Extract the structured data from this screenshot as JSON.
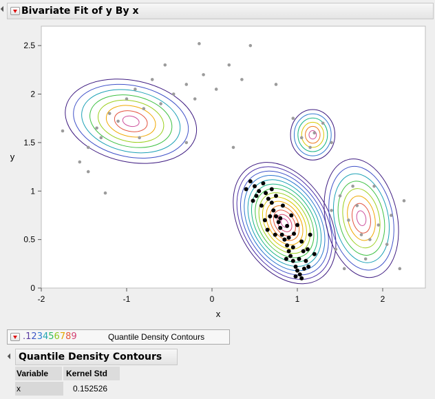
{
  "report": {
    "title": "Bivariate Fit of y By x"
  },
  "legend": {
    "digits": [
      ".1",
      "2",
      "3",
      "4",
      "5",
      "6",
      "7",
      "8",
      "9"
    ],
    "label": "Quantile Density Contours"
  },
  "section": {
    "title": "Quantile Density Contours",
    "table": {
      "headers": [
        "Variable",
        "Kernel Std"
      ],
      "rows": [
        {
          "variable": "x",
          "kernel_std": "0.152526"
        }
      ]
    }
  },
  "colors": {
    "contours": [
      "#3d1a80",
      "#4b2fa8",
      "#3f51c8",
      "#2d78d0",
      "#1aa0b5",
      "#18b585",
      "#3cc041",
      "#9bcf1c",
      "#d9c800",
      "#f0a800",
      "#ee7a1c",
      "#e35540",
      "#d8446e",
      "#cc4d9a"
    ],
    "points_gray": "#9b9b9b",
    "points_black": "#000000"
  },
  "chart_data": {
    "type": "scatter",
    "title": "",
    "xlabel": "x",
    "ylabel": "y",
    "xlim": [
      -2,
      2.5
    ],
    "ylim": [
      0,
      2.7
    ],
    "xticks": [
      "-2",
      "-1",
      "0",
      "1",
      "2"
    ],
    "yticks": [
      "0",
      "0.5",
      "1",
      "1.5",
      "2",
      "2.5"
    ],
    "grid": false,
    "density_clusters": [
      {
        "cx": -0.95,
        "cy": 1.72,
        "rx": 0.78,
        "ry": 0.42,
        "rot": -12,
        "levels": 8
      },
      {
        "cx": 0.85,
        "cy": 0.67,
        "rx": 0.52,
        "ry": 0.68,
        "rot": 32,
        "levels": 14
      },
      {
        "cx": 1.18,
        "cy": 1.58,
        "rx": 0.26,
        "ry": 0.26,
        "rot": 0,
        "levels": 6
      },
      {
        "cx": 1.75,
        "cy": 0.72,
        "rx": 0.42,
        "ry": 0.62,
        "rot": 12,
        "levels": 8
      }
    ],
    "points": [
      {
        "x": 0.45,
        "y": 1.1,
        "g": "b"
      },
      {
        "x": 0.5,
        "y": 1.05,
        "g": "b"
      },
      {
        "x": 0.55,
        "y": 1.0,
        "g": "b"
      },
      {
        "x": 0.6,
        "y": 1.08,
        "g": "b"
      },
      {
        "x": 0.63,
        "y": 0.98,
        "g": "b"
      },
      {
        "x": 0.66,
        "y": 0.92,
        "g": "b"
      },
      {
        "x": 0.7,
        "y": 0.88,
        "g": "b"
      },
      {
        "x": 0.72,
        "y": 0.8,
        "g": "b"
      },
      {
        "x": 0.75,
        "y": 0.74,
        "g": "b"
      },
      {
        "x": 0.78,
        "y": 0.68,
        "g": "b"
      },
      {
        "x": 0.8,
        "y": 0.62,
        "g": "b"
      },
      {
        "x": 0.82,
        "y": 0.55,
        "g": "b"
      },
      {
        "x": 0.85,
        "y": 0.5,
        "g": "b"
      },
      {
        "x": 0.88,
        "y": 0.44,
        "g": "b"
      },
      {
        "x": 0.9,
        "y": 0.38,
        "g": "b"
      },
      {
        "x": 0.92,
        "y": 0.33,
        "g": "b"
      },
      {
        "x": 0.95,
        "y": 0.28,
        "g": "b"
      },
      {
        "x": 0.98,
        "y": 0.22,
        "g": "b"
      },
      {
        "x": 1.0,
        "y": 0.18,
        "g": "b"
      },
      {
        "x": 1.03,
        "y": 0.14,
        "g": "b"
      },
      {
        "x": 1.05,
        "y": 0.1,
        "g": "b"
      },
      {
        "x": 1.08,
        "y": 0.2,
        "g": "b"
      },
      {
        "x": 1.1,
        "y": 0.28,
        "g": "b"
      },
      {
        "x": 1.12,
        "y": 0.4,
        "g": "b"
      },
      {
        "x": 1.05,
        "y": 0.48,
        "g": "b"
      },
      {
        "x": 0.96,
        "y": 0.56,
        "g": "b"
      },
      {
        "x": 0.88,
        "y": 0.64,
        "g": "b"
      },
      {
        "x": 0.68,
        "y": 0.74,
        "g": "b"
      },
      {
        "x": 0.58,
        "y": 0.85,
        "g": "b"
      },
      {
        "x": 0.52,
        "y": 0.95,
        "g": "b"
      },
      {
        "x": 0.62,
        "y": 0.7,
        "g": "b"
      },
      {
        "x": 0.75,
        "y": 0.95,
        "g": "b"
      },
      {
        "x": 0.83,
        "y": 0.85,
        "g": "b"
      },
      {
        "x": 0.93,
        "y": 0.75,
        "g": "b"
      },
      {
        "x": 1.0,
        "y": 0.65,
        "g": "b"
      },
      {
        "x": 1.15,
        "y": 0.55,
        "g": "b"
      },
      {
        "x": 1.2,
        "y": 0.35,
        "g": "b"
      },
      {
        "x": 0.95,
        "y": 0.42,
        "g": "b"
      },
      {
        "x": 1.02,
        "y": 0.3,
        "g": "b"
      },
      {
        "x": 0.87,
        "y": 0.3,
        "g": "b"
      },
      {
        "x": 0.4,
        "y": 1.02,
        "g": "b"
      },
      {
        "x": 0.48,
        "y": 0.9,
        "g": "b"
      },
      {
        "x": 0.7,
        "y": 1.02,
        "g": "b"
      },
      {
        "x": 0.8,
        "y": 0.72,
        "g": "b"
      },
      {
        "x": 0.9,
        "y": 0.52,
        "g": "b"
      },
      {
        "x": 1.07,
        "y": 0.38,
        "g": "b"
      },
      {
        "x": 0.98,
        "y": 0.12,
        "g": "b"
      },
      {
        "x": 1.13,
        "y": 0.22,
        "g": "b"
      },
      {
        "x": 0.65,
        "y": 0.6,
        "g": "b"
      },
      {
        "x": 0.74,
        "y": 0.55,
        "g": "b"
      },
      {
        "x": -1.75,
        "y": 1.62,
        "g": "g"
      },
      {
        "x": -1.55,
        "y": 1.3,
        "g": "g"
      },
      {
        "x": -1.45,
        "y": 1.45,
        "g": "g"
      },
      {
        "x": -1.35,
        "y": 1.65,
        "g": "g"
      },
      {
        "x": -1.2,
        "y": 1.8,
        "g": "g"
      },
      {
        "x": -1.1,
        "y": 1.72,
        "g": "g"
      },
      {
        "x": -1.0,
        "y": 1.95,
        "g": "g"
      },
      {
        "x": -0.9,
        "y": 2.05,
        "g": "g"
      },
      {
        "x": -0.8,
        "y": 1.85,
        "g": "g"
      },
      {
        "x": -0.7,
        "y": 2.15,
        "g": "g"
      },
      {
        "x": -0.6,
        "y": 1.9,
        "g": "g"
      },
      {
        "x": -0.45,
        "y": 2.0,
        "g": "g"
      },
      {
        "x": -0.3,
        "y": 2.1,
        "g": "g"
      },
      {
        "x": -0.2,
        "y": 1.95,
        "g": "g"
      },
      {
        "x": -0.1,
        "y": 2.2,
        "g": "g"
      },
      {
        "x": 0.05,
        "y": 2.05,
        "g": "g"
      },
      {
        "x": 0.2,
        "y": 2.3,
        "g": "g"
      },
      {
        "x": 0.35,
        "y": 2.15,
        "g": "g"
      },
      {
        "x": -0.55,
        "y": 2.3,
        "g": "g"
      },
      {
        "x": -0.15,
        "y": 2.52,
        "g": "g"
      },
      {
        "x": 0.45,
        "y": 2.5,
        "g": "g"
      },
      {
        "x": -1.45,
        "y": 1.2,
        "g": "g"
      },
      {
        "x": -1.25,
        "y": 0.98,
        "g": "g"
      },
      {
        "x": -1.3,
        "y": 1.55,
        "g": "g"
      },
      {
        "x": -0.85,
        "y": 1.55,
        "g": "g"
      },
      {
        "x": -0.3,
        "y": 1.5,
        "g": "g"
      },
      {
        "x": 0.25,
        "y": 1.45,
        "g": "g"
      },
      {
        "x": 1.05,
        "y": 1.55,
        "g": "g"
      },
      {
        "x": 1.2,
        "y": 1.6,
        "g": "g"
      },
      {
        "x": 1.15,
        "y": 1.45,
        "g": "g"
      },
      {
        "x": 1.3,
        "y": 1.7,
        "g": "g"
      },
      {
        "x": 1.4,
        "y": 1.5,
        "g": "g"
      },
      {
        "x": 1.5,
        "y": 0.95,
        "g": "g"
      },
      {
        "x": 1.65,
        "y": 1.05,
        "g": "g"
      },
      {
        "x": 1.7,
        "y": 0.85,
        "g": "g"
      },
      {
        "x": 1.6,
        "y": 0.7,
        "g": "g"
      },
      {
        "x": 1.75,
        "y": 0.55,
        "g": "g"
      },
      {
        "x": 1.85,
        "y": 0.5,
        "g": "g"
      },
      {
        "x": 1.95,
        "y": 0.65,
        "g": "g"
      },
      {
        "x": 2.05,
        "y": 0.45,
        "g": "g"
      },
      {
        "x": 2.1,
        "y": 0.75,
        "g": "g"
      },
      {
        "x": 1.8,
        "y": 0.3,
        "g": "g"
      },
      {
        "x": 1.45,
        "y": 0.4,
        "g": "g"
      },
      {
        "x": 1.55,
        "y": 0.2,
        "g": "g"
      },
      {
        "x": 2.2,
        "y": 0.2,
        "g": "g"
      },
      {
        "x": 2.25,
        "y": 0.9,
        "g": "g"
      },
      {
        "x": 1.9,
        "y": 1.05,
        "g": "g"
      },
      {
        "x": 1.4,
        "y": 0.8,
        "g": "g"
      },
      {
        "x": 0.95,
        "y": 1.75,
        "g": "g"
      },
      {
        "x": 0.75,
        "y": 2.1,
        "g": "g"
      }
    ]
  }
}
